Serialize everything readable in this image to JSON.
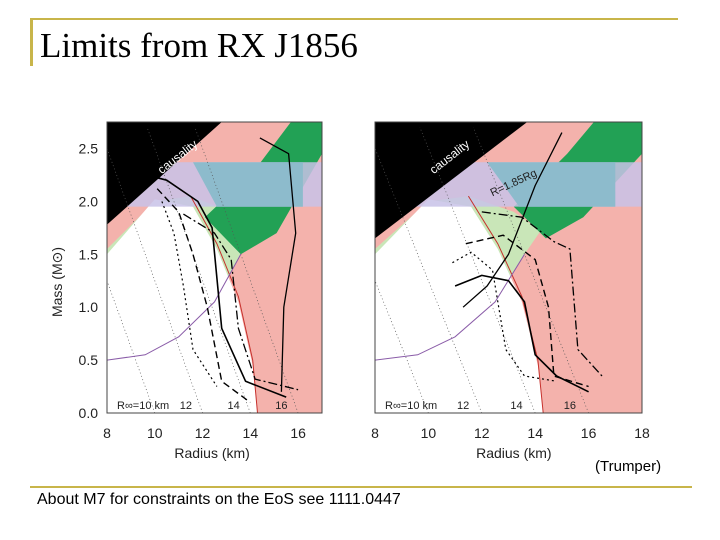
{
  "slide": {
    "title": "Limits from RX J1856",
    "credit": "(Trumper)",
    "footer": "About M7 for constraints on the EoS see 1111.0447"
  },
  "colors": {
    "accent_rule": "#c8b54a",
    "causality_region": "#000000",
    "excluded_region": "#f4b2ac",
    "allowed_region": "#c9e6b8",
    "overlap_region": "#22a155",
    "mass_band": "#c8c2e8",
    "mass_band_overlap": "#8dbbcc"
  },
  "chart_data": [
    {
      "type": "line",
      "panel": "left",
      "xlabel": "Radius (km)",
      "ylabel": "Mass (M⊙)",
      "xlim": [
        8,
        17
      ],
      "ylim": [
        0,
        2.75
      ],
      "x_ticks": [
        "8",
        "10",
        "12",
        "14",
        "16"
      ],
      "y_ticks": [
        "0.0",
        "0.5",
        "1.0",
        "1.5",
        "2.0",
        "2.5"
      ],
      "annotations": [
        "causality",
        "R∞=10 km",
        "12",
        "14",
        "16"
      ],
      "series": [
        {
          "x": [
            9.3,
            10.5,
            11.8,
            12.4,
            12.8,
            13.8,
            15.5
          ],
          "y": [
            2.27,
            2.2,
            2.0,
            1.75,
            0.8,
            0.3,
            0.15
          ]
        },
        {
          "x": [
            10.1,
            11.0,
            11.6,
            12.2,
            12.8,
            14.0
          ],
          "y": [
            2.12,
            1.9,
            1.5,
            1.0,
            0.3,
            0.1
          ]
        },
        {
          "x": [
            10.3,
            10.8,
            11.2,
            11.6,
            12.6
          ],
          "y": [
            2.0,
            1.7,
            1.2,
            0.6,
            0.25
          ]
        },
        {
          "x": [
            11.2,
            12.5,
            13.2,
            13.5,
            14.2,
            16.0
          ],
          "y": [
            1.88,
            1.7,
            1.45,
            0.8,
            0.32,
            0.22
          ]
        },
        {
          "x": [
            14.4,
            15.6,
            15.9,
            15.4,
            15.3
          ],
          "y": [
            2.6,
            2.45,
            1.7,
            1.0,
            0.2
          ]
        }
      ]
    },
    {
      "type": "line",
      "panel": "right",
      "xlabel": "Radius (km)",
      "xlim": [
        8,
        18
      ],
      "ylim": [
        0,
        2.75
      ],
      "x_ticks": [
        "8",
        "10",
        "12",
        "14",
        "16",
        "18"
      ],
      "annotations": [
        "causality",
        "R=1.85Rg",
        "R∞=10 km",
        "12",
        "14",
        "16"
      ],
      "series": [
        {
          "x": [
            11.0,
            12.0,
            13.0,
            13.6,
            14.0,
            14.8,
            16.0
          ],
          "y": [
            1.2,
            1.3,
            1.25,
            1.05,
            0.55,
            0.35,
            0.2
          ]
        },
        {
          "x": [
            11.4,
            12.8,
            14.0,
            14.5,
            14.7,
            16.0
          ],
          "y": [
            1.6,
            1.68,
            1.45,
            1.0,
            0.35,
            0.25
          ]
        },
        {
          "x": [
            10.9,
            11.6,
            12.4,
            12.9,
            13.6,
            14.8
          ],
          "y": [
            1.42,
            1.52,
            1.35,
            0.6,
            0.35,
            0.3
          ]
        },
        {
          "x": [
            12.0,
            13.5,
            14.7,
            15.3,
            15.6,
            16.5
          ],
          "y": [
            1.9,
            1.85,
            1.62,
            1.55,
            0.6,
            0.35
          ]
        },
        {
          "x": [
            15.0,
            14.0,
            13.0,
            12.2,
            11.3
          ],
          "y": [
            2.65,
            2.15,
            1.5,
            1.2,
            1.0
          ]
        }
      ]
    }
  ]
}
